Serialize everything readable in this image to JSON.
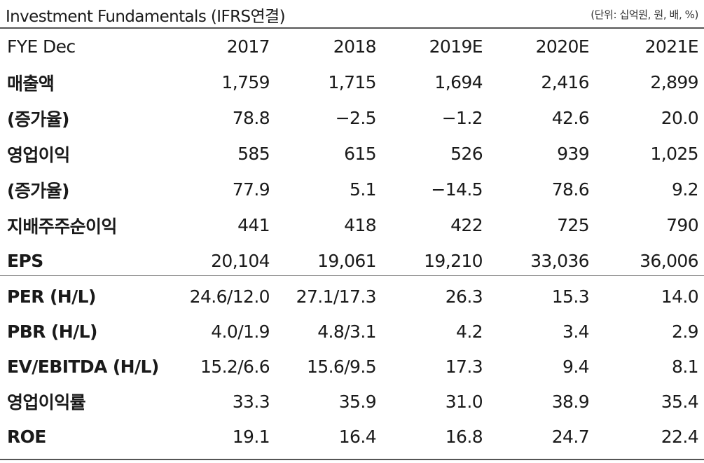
{
  "title": "Investment Fundamentals (IFRS연결)",
  "unit_note": "(단위: 십억원, 원, 배, %)",
  "table": {
    "header_label": "FYE Dec",
    "years": [
      "2017",
      "2018",
      "2019E",
      "2020E",
      "2021E"
    ],
    "rows": [
      {
        "label": "매출액",
        "values": [
          "1,759",
          "1,715",
          "1,694",
          "2,416",
          "2,899"
        ]
      },
      {
        "label": "(증가율)",
        "values": [
          "78.8",
          "−2.5",
          "−1.2",
          "42.6",
          "20.0"
        ]
      },
      {
        "label": "영업이익",
        "values": [
          "585",
          "615",
          "526",
          "939",
          "1,025"
        ]
      },
      {
        "label": "(증가율)",
        "values": [
          "77.9",
          "5.1",
          "−14.5",
          "78.6",
          "9.2"
        ]
      },
      {
        "label": "지배주주순이익",
        "values": [
          "441",
          "418",
          "422",
          "725",
          "790"
        ]
      },
      {
        "label": "EPS",
        "values": [
          "20,104",
          "19,061",
          "19,210",
          "33,036",
          "36,006"
        ]
      },
      {
        "label": "PER (H/L)",
        "values": [
          "24.6/12.0",
          "27.1/17.3",
          "26.3",
          "15.3",
          "14.0"
        ]
      },
      {
        "label": "PBR (H/L)",
        "values": [
          "4.0/1.9",
          "4.8/3.1",
          "4.2",
          "3.4",
          "2.9"
        ]
      },
      {
        "label": "EV/EBITDA (H/L)",
        "values": [
          "15.2/6.6",
          "15.6/9.5",
          "17.3",
          "9.4",
          "8.1"
        ]
      },
      {
        "label": "영업이익률",
        "values": [
          "33.3",
          "35.9",
          "31.0",
          "38.9",
          "35.4"
        ]
      },
      {
        "label": "ROE",
        "values": [
          "19.1",
          "16.4",
          "16.8",
          "24.7",
          "22.4"
        ]
      }
    ]
  }
}
